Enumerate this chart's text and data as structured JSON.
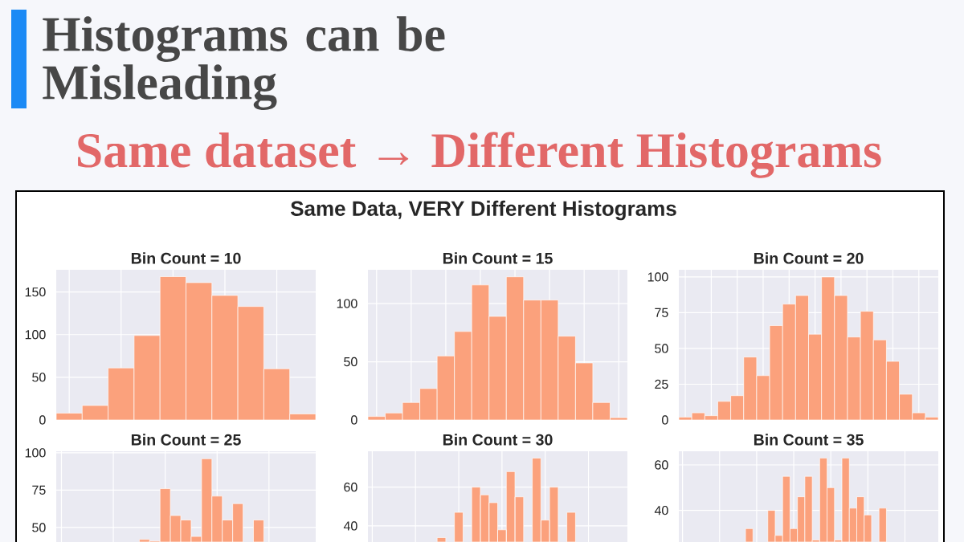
{
  "chart_data": [
    {
      "type": "other",
      "title": "Histograms can be Misleading",
      "subtitle": "Same dataset → Different Histograms",
      "annotations": [
        "Same Data, VERY Different Histograms"
      ]
    },
    {
      "type": "histogram",
      "title": "Bin Count = 10",
      "categories": [
        null,
        null,
        null,
        null,
        null,
        null,
        null,
        null,
        null,
        null
      ],
      "values": [
        8,
        17,
        61,
        99,
        168,
        161,
        146,
        133,
        60,
        7
      ],
      "color": "#fba17c",
      "ylim": [
        0,
        176
      ],
      "yticks": [
        0,
        50,
        100,
        150
      ],
      "grid": true
    },
    {
      "type": "histogram",
      "title": "Bin Count = 15",
      "categories": [
        null,
        null,
        null,
        null,
        null,
        null,
        null,
        null,
        null,
        null,
        null,
        null,
        null,
        null,
        null
      ],
      "values": [
        3,
        6,
        15,
        27,
        55,
        76,
        116,
        89,
        123,
        103,
        103,
        72,
        49,
        15,
        2
      ],
      "color": "#fba17c",
      "ylim": [
        0,
        129
      ],
      "yticks": [
        0,
        50,
        100
      ],
      "grid": true
    },
    {
      "type": "histogram",
      "title": "Bin Count = 20",
      "categories": [
        null,
        null,
        null,
        null,
        null,
        null,
        null,
        null,
        null,
        null,
        null,
        null,
        null,
        null,
        null,
        null,
        null,
        null,
        null,
        null
      ],
      "values": [
        2,
        5,
        3,
        13,
        17,
        44,
        31,
        66,
        81,
        87,
        60,
        100,
        87,
        58,
        76,
        56,
        41,
        18,
        5,
        2
      ],
      "color": "#fba17c",
      "ylim": [
        0,
        105
      ],
      "yticks": [
        0,
        25,
        50,
        75,
        100
      ],
      "grid": true
    },
    {
      "type": "histogram",
      "title": "Bin Count = 25",
      "categories": [
        null,
        null,
        null,
        null,
        null,
        null,
        null,
        null,
        null,
        null,
        null,
        null,
        null,
        null,
        null,
        null,
        null,
        null,
        null,
        null,
        null,
        null,
        null,
        null,
        null
      ],
      "values": [
        null,
        null,
        null,
        null,
        null,
        null,
        null,
        null,
        42,
        41,
        76,
        58,
        55,
        44,
        96,
        71,
        55,
        66,
        null,
        55,
        null,
        null,
        null,
        null,
        null
      ],
      "color": "#fba17c",
      "ylim": [
        40.3,
        101
      ],
      "yticks": [
        50,
        75,
        100
      ],
      "grid": true
    },
    {
      "type": "histogram",
      "title": "Bin Count = 30",
      "categories": [
        null,
        null,
        null,
        null,
        null,
        null,
        null,
        null,
        null,
        null,
        null,
        null,
        null,
        null,
        null,
        null,
        null,
        null,
        null,
        null,
        null,
        null,
        null,
        null,
        null,
        null,
        null,
        null,
        null,
        null
      ],
      "values": [
        null,
        null,
        null,
        null,
        null,
        null,
        null,
        null,
        34,
        null,
        47,
        null,
        60,
        56,
        52,
        38,
        68,
        55,
        null,
        75,
        43,
        60,
        null,
        47,
        null,
        null,
        null,
        null,
        null,
        null
      ],
      "color": "#fba17c",
      "ylim": [
        31.7,
        78.5
      ],
      "yticks": [
        40,
        60
      ],
      "grid": true
    },
    {
      "type": "histogram",
      "title": "Bin Count = 35",
      "categories": [
        null,
        null,
        null,
        null,
        null,
        null,
        null,
        null,
        null,
        null,
        null,
        null,
        null,
        null,
        null,
        null,
        null,
        null,
        null,
        null,
        null,
        null,
        null,
        null,
        null,
        null,
        null,
        null,
        null,
        null,
        null,
        null,
        null,
        null,
        null
      ],
      "values": [
        null,
        null,
        null,
        null,
        null,
        null,
        null,
        null,
        null,
        32,
        null,
        null,
        40,
        29,
        55,
        32,
        46,
        55,
        27,
        63,
        50,
        27,
        63,
        41,
        46,
        38,
        null,
        41,
        null,
        null,
        null,
        null,
        null,
        null,
        null
      ],
      "color": "#fba17c",
      "ylim": [
        26.1,
        66
      ],
      "yticks": [
        40,
        60
      ],
      "grid": true
    }
  ]
}
